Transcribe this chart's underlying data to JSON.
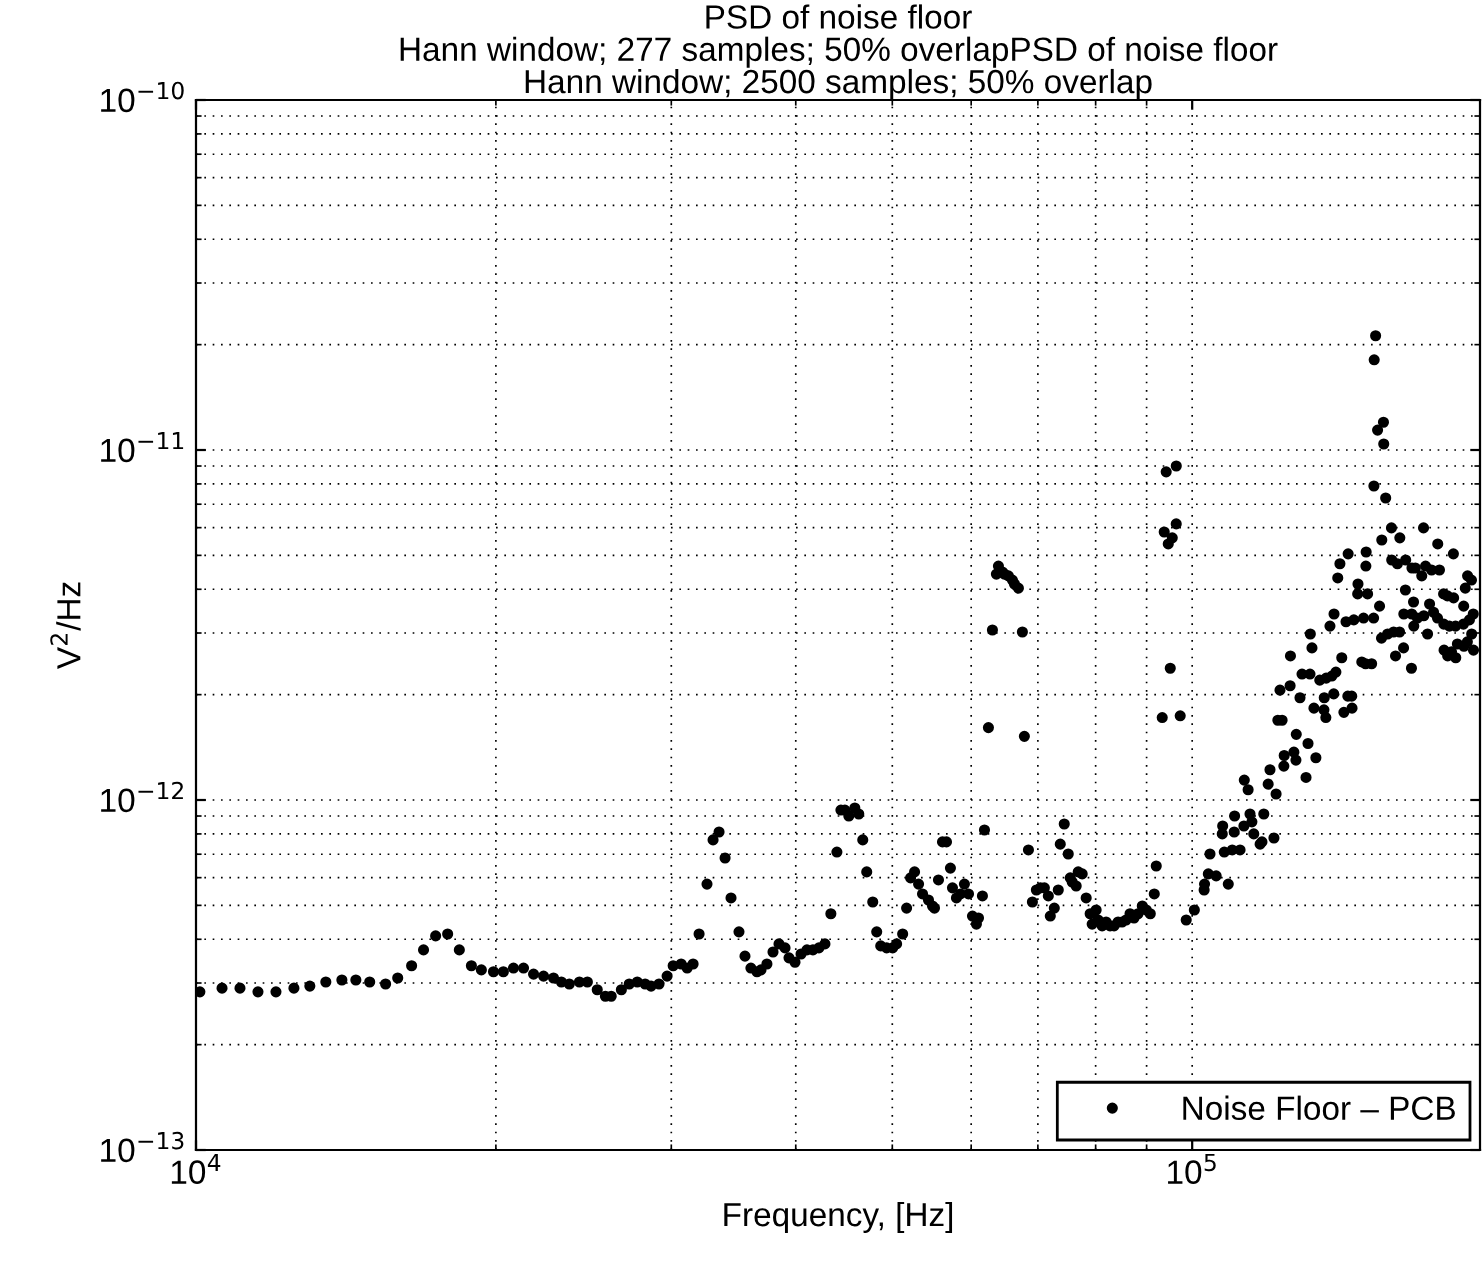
{
  "chart_data": {
    "type": "scatter",
    "title": "PSD of noise floor\nHann window; 277 samples; 50% overlapPSD of noise floor\nHann window; 2500 samples; 50% overlap",
    "xlabel": "Frequency, [Hz]",
    "ylabel": "V$^{2}$/Hz",
    "log": "xy",
    "grid": true,
    "legend": "bottom right",
    "marker": "circle",
    "xlim": [
      10000,
      194500
    ],
    "ylim": [
      1e-13,
      1e-10
    ],
    "xticks": [
      {
        "value": 10000,
        "label": "10$^{4}$"
      },
      {
        "value": 100000,
        "label": "10$^{5}$"
      }
    ],
    "yticks": [
      {
        "value": 1e-13,
        "label": "10$^{−13}$"
      },
      {
        "value": 1e-12,
        "label": "10$^{−12}$"
      },
      {
        "value": 1e-11,
        "label": "10$^{−11}$"
      },
      {
        "value": 1e-10,
        "label": "10$^{−10}$"
      }
    ],
    "series": [
      {
        "name": "Noise Floor – PCB",
        "color": "#000000",
        "x": [
          10090,
          10620,
          11070,
          11540,
          12030,
          12540,
          13010,
          13500,
          14010,
          14470,
          14940,
          15500,
          15940,
          16460,
          16920,
          17400,
          17890,
          18380,
          18900,
          19340,
          19890,
          20350,
          20830,
          21320,
          21820,
          22330,
          22850,
          23270,
          23700,
          24260,
          24710,
          25280,
          25760,
          26110,
          26730,
          27220,
          27730,
          28240,
          28630,
          29160,
          29710,
          30130,
          30690,
          31120,
          31550,
          31990,
          32580,
          33040,
          33500,
          33970,
          34440,
          35080,
          35570,
          36060,
          36570,
          36910,
          37420,
          37950,
          38480,
          39020,
          39380,
          39930,
          40490,
          41050,
          41620,
          42200,
          42790,
          43380,
          43990,
          44400,
          44810,
          45220,
          45850,
          46270,
          46700,
          47130,
          47790,
          48230,
          48680,
          49350,
          50040,
          50500,
          51210,
          51680,
          52160,
          52640,
          53130,
          53620,
          54360,
          54870,
          55120,
          55630,
          56150,
          56670,
          57190,
          57460,
          57990,
          58530,
          59070,
          59630,
          60180,
          60730,
          61020,
          61580,
          61870,
          62440,
          63020,
          63600,
          63900,
          64490,
          64790,
          65390,
          66000,
          66310,
          66920,
          67540,
          67850,
          68490,
          69120,
          69760,
          70410,
          71060,
          71710,
          72040,
          72710,
          73380,
          73720,
          74400,
          75090,
          75440,
          75780,
          76480,
          76840,
          77550,
          78270,
          78990,
          79360,
          80090,
          80460,
          81210,
          81960,
          82710,
          83480,
          84260,
          85040,
          85830,
          86620,
          87420,
          88230,
          89110,
          89940,
          90770,
          91610,
          92030,
          93310,
          97270,
          95060,
          93740,
          96380,
          94620,
          95500,
          94170,
          96390,
          98630,
          100500,
          102800,
          102900,
          103800,
          104200,
          105700,
          107200,
          107300,
          107700,
          108700,
          109700,
          110200,
          110300,
          111700,
          112700,
          112800,
          113800,
          114300,
          114800,
          115300,
          117000,
          117500,
          118000,
          119200,
          119700,
          120800,
          121400,
          121900,
          122500,
          123100,
          123600,
          123700,
          125400,
          125500,
          126500,
          127100,
          127200,
          128300,
          128900,
          130100,
          130700,
          131300,
          131400,
          131900,
          132500,
          133100,
          134300,
          135600,
          135700,
          136200,
          136300,
          137500,
          138100,
          138700,
          138800,
          139400,
          140000,
          140700,
          141300,
          142000,
          142700,
          143300,
          143400,
          144600,
          144700,
          145300,
          146600,
          146700,
          148000,
          148600,
          149300,
          149400,
          149500,
          150000,
          151400,
          152100,
          152200,
          152300,
          152800,
          153500,
          154200,
          154900,
          155000,
          155600,
          155700,
          156400,
          157100,
          158500,
          158600,
          159300,
          160000,
          160700,
          161500,
          161600,
          163000,
          163100,
          163700,
          163800,
          166000,
          166100,
          166200,
          166800,
          166900,
          167500,
          168300,
          170000,
          170700,
          170800,
          171500,
          172300,
          173100,
          173900,
          174700,
          176300,
          176400,
          177100,
          178800,
          178900,
          179000,
          180400,
          180500,
          181200,
          182100,
          182900,
          183000,
          183800,
          183900,
          184600,
          187200,
          187300,
          187400,
          188000,
          188900,
          189000,
          189800,
          190700,
          190800,
          191500,
          191600
        ],
        "values": [
          2.83e-13,
          2.9e-13,
          2.9e-13,
          2.83e-13,
          2.83e-13,
          2.9e-13,
          2.94e-13,
          3.02e-13,
          3.06e-13,
          3.06e-13,
          3.02e-13,
          2.98e-13,
          3.1e-13,
          3.36e-13,
          3.73e-13,
          4.09e-13,
          4.14e-13,
          3.73e-13,
          3.36e-13,
          3.27e-13,
          3.23e-13,
          3.23e-13,
          3.31e-13,
          3.31e-13,
          3.18e-13,
          3.14e-13,
          3.1e-13,
          3.02e-13,
          2.98e-13,
          3.02e-13,
          3.02e-13,
          2.87e-13,
          2.75e-13,
          2.75e-13,
          2.87e-13,
          2.98e-13,
          3.02e-13,
          2.98e-13,
          2.94e-13,
          2.98e-13,
          3.14e-13,
          3.36e-13,
          3.4e-13,
          3.31e-13,
          3.4e-13,
          4.14e-13,
          5.75e-13,
          7.69e-13,
          8.1e-13,
          6.83e-13,
          5.25e-13,
          4.2e-13,
          3.58e-13,
          3.31e-13,
          3.23e-13,
          3.27e-13,
          3.4e-13,
          3.68e-13,
          3.88e-13,
          3.78e-13,
          3.54e-13,
          3.44e-13,
          3.63e-13,
          3.73e-13,
          3.73e-13,
          3.78e-13,
          3.88e-13,
          4.73e-13,
          7.1e-13,
          9.36e-13,
          9.36e-13,
          9e-13,
          9.49e-13,
          9.12e-13,
          7.69e-13,
          6.23e-13,
          5.11e-13,
          4.2e-13,
          3.83e-13,
          3.78e-13,
          3.78e-13,
          3.88e-13,
          4.14e-13,
          4.91e-13,
          5.99e-13,
          6.23e-13,
          5.75e-13,
          5.39e-13,
          5.18e-13,
          4.98e-13,
          4.91e-13,
          5.91e-13,
          7.59e-13,
          7.59e-13,
          6.39e-13,
          5.61e-13,
          5.25e-13,
          5.39e-13,
          5.75e-13,
          5.39e-13,
          4.66e-13,
          4.42e-13,
          4.6e-13,
          5.32e-13,
          8.21e-13,
          1.61e-12,
          3.06e-12,
          4.42e-12,
          4.66e-12,
          4.48e-12,
          4.42e-12,
          4.37e-12,
          4.25e-12,
          4.14e-12,
          4.03e-12,
          3.02e-12,
          1.52e-12,
          7.2e-13,
          5.11e-13,
          5.53e-13,
          5.61e-13,
          5.61e-13,
          5.32e-13,
          4.66e-13,
          4.91e-13,
          5.53e-13,
          7.48e-13,
          8.54e-13,
          7.01e-13,
          5.99e-13,
          5.83e-13,
          5.68e-13,
          6.23e-13,
          6.15e-13,
          5.25e-13,
          4.73e-13,
          4.42e-13,
          4.85e-13,
          4.54e-13,
          4.37e-13,
          4.48e-13,
          4.37e-13,
          4.37e-13,
          4.48e-13,
          4.48e-13,
          4.54e-13,
          4.73e-13,
          4.6e-13,
          4.73e-13,
          4.98e-13,
          4.85e-13,
          4.73e-13,
          5.39e-13,
          6.48e-13,
          1.72e-12,
          1.74e-12,
          2.38e-12,
          5.83e-12,
          6.15e-12,
          5.39e-12,
          5.61e-12,
          8.66e-12,
          9e-12,
          4.54e-13,
          4.85e-13,
          5.53e-13,
          5.75e-13,
          6.15e-13,
          7.01e-13,
          6.07e-13,
          8e-13,
          8.43e-13,
          7.1e-13,
          5.75e-13,
          7.2e-13,
          8.1e-13,
          9e-13,
          7.2e-13,
          8.43e-13,
          1.14e-12,
          1.07e-12,
          9.12e-13,
          8.66e-13,
          8e-13,
          7.48e-13,
          7.59e-13,
          9.12e-13,
          1.11e-12,
          1.22e-12,
          7.79e-13,
          1.04e-12,
          1.69e-12,
          2.06e-12,
          1.69e-12,
          1.25e-12,
          1.34e-12,
          2.12e-12,
          2.58e-12,
          1.37e-12,
          1.3e-12,
          1.54e-12,
          1.96e-12,
          2.29e-12,
          1.16e-12,
          1.45e-12,
          2.29e-12,
          2.98e-12,
          2.72e-12,
          1.83e-12,
          1.32e-12,
          2.2e-12,
          1.81e-12,
          1.96e-12,
          1.72e-12,
          2.23e-12,
          3.14e-12,
          2.26e-12,
          2.01e-12,
          3.4e-12,
          2.32e-12,
          4.31e-12,
          4.73e-12,
          2.55e-12,
          1.78e-12,
          3.23e-12,
          1.98e-12,
          5.05e-12,
          1.98e-12,
          1.83e-12,
          3.27e-12,
          3.88e-12,
          4.14e-12,
          2.48e-12,
          3.31e-12,
          2.45e-12,
          4.66e-12,
          5.11e-12,
          3.88e-12,
          2.45e-12,
          3.31e-12,
          7.89e-12,
          1.81e-11,
          2.12e-11,
          1.14e-11,
          3.58e-12,
          2.9e-12,
          5.53e-12,
          1.2e-11,
          1.04e-11,
          7.29e-12,
          2.98e-12,
          5.99e-12,
          4.85e-12,
          3.02e-12,
          2.58e-12,
          4.73e-12,
          3.02e-12,
          5.61e-12,
          2.72e-12,
          3.4e-12,
          3.98e-12,
          4.85e-12,
          2.38e-12,
          3.4e-12,
          4.6e-12,
          3.68e-12,
          3.14e-12,
          4.6e-12,
          3.31e-12,
          4.37e-12,
          5.99e-12,
          3.36e-12,
          4.66e-12,
          2.98e-12,
          3.63e-12,
          4.54e-12,
          3.44e-12,
          3.31e-12,
          5.39e-12,
          4.54e-12,
          3.88e-12,
          3.18e-12,
          2.68e-12,
          3.83e-12,
          2.58e-12,
          3.14e-12,
          2.65e-12,
          5.05e-12,
          3.78e-12,
          3.14e-12,
          2.55e-12,
          2.79e-12,
          3.18e-12,
          3.58e-12,
          2.75e-12,
          4.03e-12,
          2.83e-12,
          4.37e-12,
          3.27e-12,
          4.25e-12,
          2.98e-12,
          3.4e-12,
          2.68e-12
        ]
      }
    ]
  }
}
